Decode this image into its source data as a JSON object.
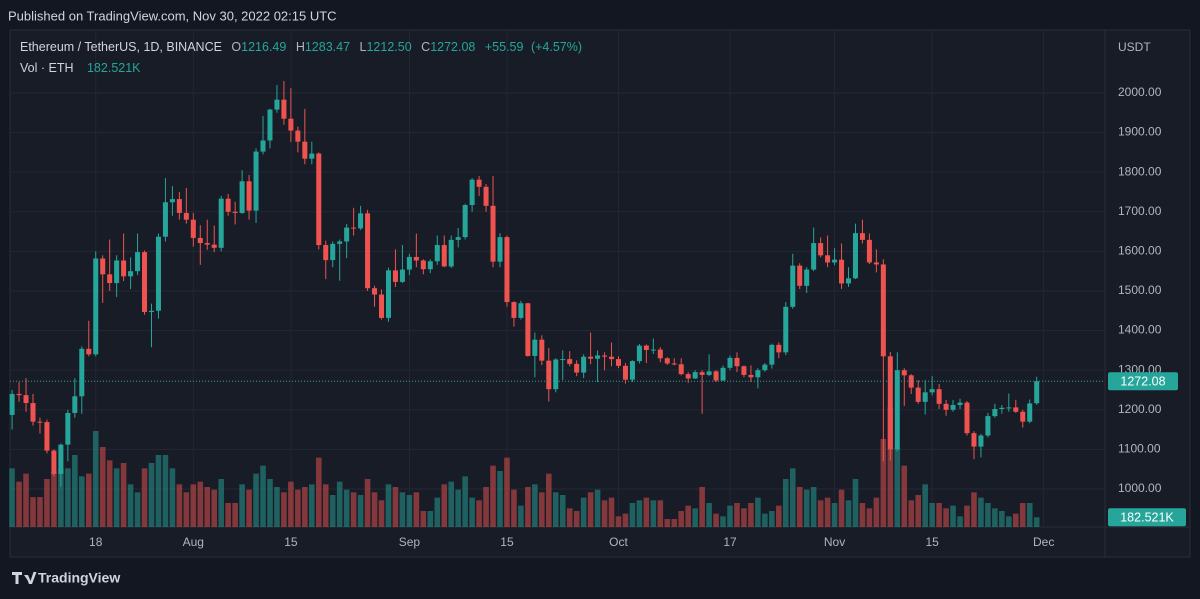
{
  "published": "Published on TradingView.com, Nov 30, 2022 02:15 UTC",
  "footer": {
    "brand": "TradingView"
  },
  "chart_data": {
    "type": "candlestick",
    "title": "Ethereum / TetherUS, 1D, BINANCE",
    "ohlc_labels": [
      "O",
      "H",
      "L",
      "C"
    ],
    "change": {
      "value": 55.59,
      "label": "+55.59"
    },
    "change_pct": {
      "value": 4.57,
      "label": "(+4.57%)"
    },
    "y_unit": "USDT",
    "up_color": "#26a69a",
    "down_color": "#ef5350",
    "grid": true,
    "ylim": [
      904,
      2159
    ],
    "yticks": [
      {
        "value": 1000,
        "label": "1000.00"
      },
      {
        "value": 1100,
        "label": "1100.00"
      },
      {
        "value": 1200,
        "label": "1200.00"
      },
      {
        "value": 1300,
        "label": "1300.00"
      },
      {
        "value": 1400,
        "label": "1400.00"
      },
      {
        "value": 1500,
        "label": "1500.00"
      },
      {
        "value": 1600,
        "label": "1600.00"
      },
      {
        "value": 1700,
        "label": "1700.00"
      },
      {
        "value": 1800,
        "label": "1800.00"
      },
      {
        "value": 1900,
        "label": "1900.00"
      },
      {
        "value": 2000,
        "label": "2000.00"
      }
    ],
    "xlim": [
      -0.3,
      156.8
    ],
    "xticks": [
      {
        "value": 12,
        "label": "18"
      },
      {
        "value": 26,
        "label": "Aug"
      },
      {
        "value": 40,
        "label": "15"
      },
      {
        "value": 57,
        "label": "Sep"
      },
      {
        "value": 71,
        "label": "15"
      },
      {
        "value": 87,
        "label": "Oct"
      },
      {
        "value": 103,
        "label": "17"
      },
      {
        "value": 118,
        "label": "Nov"
      },
      {
        "value": 132,
        "label": "15"
      },
      {
        "value": 148,
        "label": "Dec"
      }
    ],
    "open": [
      1187,
      1240,
      1237,
      1217,
      1170,
      1169,
      1097,
      1038,
      1112,
      1192,
      1234,
      1354,
      1340,
      1582,
      1542,
      1520,
      1577,
      1537,
      1550,
      1598,
      1447,
      1450,
      1637,
      1724,
      1732,
      1697,
      1680,
      1634,
      1621,
      1617,
      1609,
      1733,
      1700,
      1697,
      1777,
      1703,
      1852,
      1880,
      1958,
      1983,
      1935,
      1905,
      1877,
      1834,
      1847,
      1616,
      1578,
      1619,
      1625,
      1660,
      1658,
      1696,
      1507,
      1491,
      1432,
      1552,
      1523,
      1554,
      1586,
      1577,
      1555,
      1575,
      1616,
      1562,
      1629,
      1636,
      1717,
      1781,
      1763,
      1715,
      1574,
      1636,
      1472,
      1432,
      1469,
      1336,
      1377,
      1324,
      1252,
      1327,
      1328,
      1316,
      1294,
      1334,
      1329,
      1337,
      1334,
      1328,
      1311,
      1276,
      1323,
      1362,
      1351,
      1352,
      1330,
      1317,
      1315,
      1290,
      1279,
      1295,
      1288,
      1297,
      1274,
      1306,
      1331,
      1310,
      1288,
      1282,
      1300,
      1314,
      1364,
      1345,
      1460,
      1564,
      1513,
      1554,
      1621,
      1590,
      1572,
      1579,
      1519,
      1532,
      1646,
      1629,
      1572,
      1567,
      1335,
      1100,
      1300,
      1287,
      1256,
      1220,
      1244,
      1252,
      1215,
      1200,
      1212,
      1218,
      1141,
      1107,
      1135,
      1184,
      1202,
      1205,
      1206,
      1195,
      1170,
      1216.49
    ],
    "high": [
      1250,
      1270,
      1280,
      1240,
      1180,
      1175,
      1100,
      1115,
      1200,
      1280,
      1360,
      1425,
      1600,
      1590,
      1630,
      1590,
      1645,
      1585,
      1645,
      1602,
      1468,
      1645,
      1785,
      1765,
      1750,
      1760,
      1697,
      1666,
      1680,
      1665,
      1740,
      1745,
      1725,
      1805,
      1793,
      1860,
      1942,
      1960,
      2020,
      2030,
      2012,
      1915,
      1960,
      1877,
      1850,
      1627,
      1625,
      1630,
      1669,
      1710,
      1715,
      1705,
      1513,
      1504,
      1559,
      1605,
      1616,
      1594,
      1645,
      1580,
      1580,
      1640,
      1640,
      1640,
      1659,
      1720,
      1785,
      1790,
      1770,
      1790,
      1646,
      1640,
      1474,
      1475,
      1470,
      1395,
      1388,
      1356,
      1330,
      1350,
      1348,
      1325,
      1340,
      1395,
      1350,
      1345,
      1370,
      1335,
      1318,
      1325,
      1366,
      1365,
      1380,
      1358,
      1333,
      1330,
      1330,
      1295,
      1300,
      1300,
      1340,
      1300,
      1312,
      1337,
      1345,
      1312,
      1312,
      1305,
      1318,
      1367,
      1370,
      1472,
      1594,
      1570,
      1560,
      1660,
      1635,
      1640,
      1608,
      1620,
      1560,
      1670,
      1680,
      1645,
      1605,
      1580,
      1346,
      1345,
      1305,
      1290,
      1275,
      1275,
      1285,
      1265,
      1225,
      1225,
      1228,
      1222,
      1146,
      1139,
      1192,
      1215,
      1212,
      1241,
      1225,
      1200,
      1226,
      1283.47
    ],
    "low": [
      1150,
      1220,
      1195,
      1160,
      1140,
      1090,
      1032,
      1006,
      1070,
      1180,
      1190,
      1335,
      1335,
      1470,
      1500,
      1485,
      1525,
      1505,
      1540,
      1440,
      1358,
      1430,
      1625,
      1690,
      1680,
      1670,
      1612,
      1566,
      1604,
      1598,
      1600,
      1690,
      1668,
      1695,
      1680,
      1672,
      1845,
      1860,
      1950,
      1920,
      1876,
      1850,
      1820,
      1820,
      1605,
      1530,
      1560,
      1526,
      1583,
      1640,
      1654,
      1500,
      1460,
      1428,
      1422,
      1510,
      1520,
      1540,
      1560,
      1542,
      1545,
      1566,
      1560,
      1558,
      1610,
      1630,
      1700,
      1740,
      1700,
      1560,
      1560,
      1460,
      1410,
      1428,
      1334,
      1282,
      1313,
      1221,
      1244,
      1275,
      1310,
      1285,
      1280,
      1315,
      1270,
      1300,
      1310,
      1305,
      1266,
      1270,
      1317,
      1318,
      1341,
      1320,
      1313,
      1312,
      1287,
      1268,
      1278,
      1190,
      1285,
      1270,
      1273,
      1300,
      1295,
      1282,
      1270,
      1254,
      1296,
      1304,
      1330,
      1338,
      1455,
      1505,
      1495,
      1550,
      1585,
      1560,
      1565,
      1505,
      1510,
      1530,
      1620,
      1568,
      1547,
      1070,
      1072,
      1095,
      1210,
      1240,
      1215,
      1188,
      1236,
      1202,
      1185,
      1195,
      1202,
      1135,
      1075,
      1080,
      1130,
      1180,
      1190,
      1195,
      1192,
      1155,
      1166,
      1212.5
    ],
    "close": [
      1240,
      1237,
      1217,
      1170,
      1169,
      1097,
      1038,
      1112,
      1192,
      1234,
      1354,
      1340,
      1582,
      1542,
      1520,
      1577,
      1537,
      1550,
      1598,
      1447,
      1450,
      1637,
      1724,
      1732,
      1697,
      1680,
      1634,
      1621,
      1617,
      1609,
      1733,
      1700,
      1697,
      1777,
      1703,
      1852,
      1880,
      1958,
      1983,
      1935,
      1905,
      1877,
      1834,
      1847,
      1616,
      1578,
      1619,
      1625,
      1660,
      1658,
      1696,
      1507,
      1491,
      1432,
      1552,
      1523,
      1554,
      1586,
      1577,
      1555,
      1575,
      1616,
      1562,
      1629,
      1636,
      1717,
      1781,
      1763,
      1715,
      1574,
      1636,
      1472,
      1432,
      1469,
      1336,
      1377,
      1324,
      1252,
      1327,
      1328,
      1316,
      1294,
      1334,
      1329,
      1337,
      1334,
      1328,
      1311,
      1276,
      1323,
      1362,
      1351,
      1352,
      1330,
      1317,
      1315,
      1290,
      1279,
      1295,
      1288,
      1297,
      1274,
      1306,
      1331,
      1310,
      1288,
      1282,
      1300,
      1314,
      1364,
      1345,
      1460,
      1564,
      1513,
      1554,
      1621,
      1590,
      1572,
      1579,
      1519,
      1532,
      1646,
      1629,
      1572,
      1567,
      1335,
      1100,
      1300,
      1287,
      1256,
      1220,
      1244,
      1252,
      1215,
      1200,
      1212,
      1218,
      1141,
      1107,
      1135,
      1184,
      1202,
      1205,
      1206,
      1195,
      1170,
      1216,
      1272.08
    ],
    "low_labels": {
      "147": "1212.50"
    },
    "volume": {
      "name": "Vol · ETH",
      "values": [
        1100,
        850,
        1000,
        560,
        560,
        900,
        1050,
        1100,
        1100,
        1350,
        950,
        1000,
        1800,
        1500,
        1250,
        1100,
        1200,
        800,
        650,
        1100,
        1200,
        1350,
        1350,
        1100,
        800,
        650,
        800,
        850,
        750,
        700,
        900,
        450,
        450,
        800,
        700,
        1000,
        1150,
        900,
        750,
        650,
        850,
        700,
        750,
        800,
        1300,
        800,
        600,
        850,
        700,
        650,
        600,
        900,
        650,
        500,
        800,
        750,
        650,
        600,
        650,
        300,
        300,
        550,
        800,
        850,
        700,
        950,
        550,
        500,
        750,
        1150,
        1050,
        1300,
        700,
        400,
        750,
        800,
        650,
        1000,
        650,
        600,
        350,
        300,
        550,
        650,
        700,
        500,
        550,
        200,
        250,
        450,
        500,
        550,
        500,
        500,
        150,
        150,
        300,
        400,
        350,
        750,
        450,
        250,
        200,
        400,
        450,
        350,
        450,
        550,
        250,
        300,
        400,
        900,
        1100,
        750,
        700,
        750,
        500,
        550,
        450,
        700,
        500,
        900,
        450,
        350,
        550,
        1650,
        2250,
        1500,
        1150,
        500,
        600,
        800,
        450,
        450,
        350,
        400,
        200,
        400,
        650,
        550,
        450,
        350,
        300,
        200,
        250,
        450,
        450,
        182.521
      ],
      "value_labels": {
        "147": "182.521K"
      },
      "opacity": 0.5
    }
  }
}
